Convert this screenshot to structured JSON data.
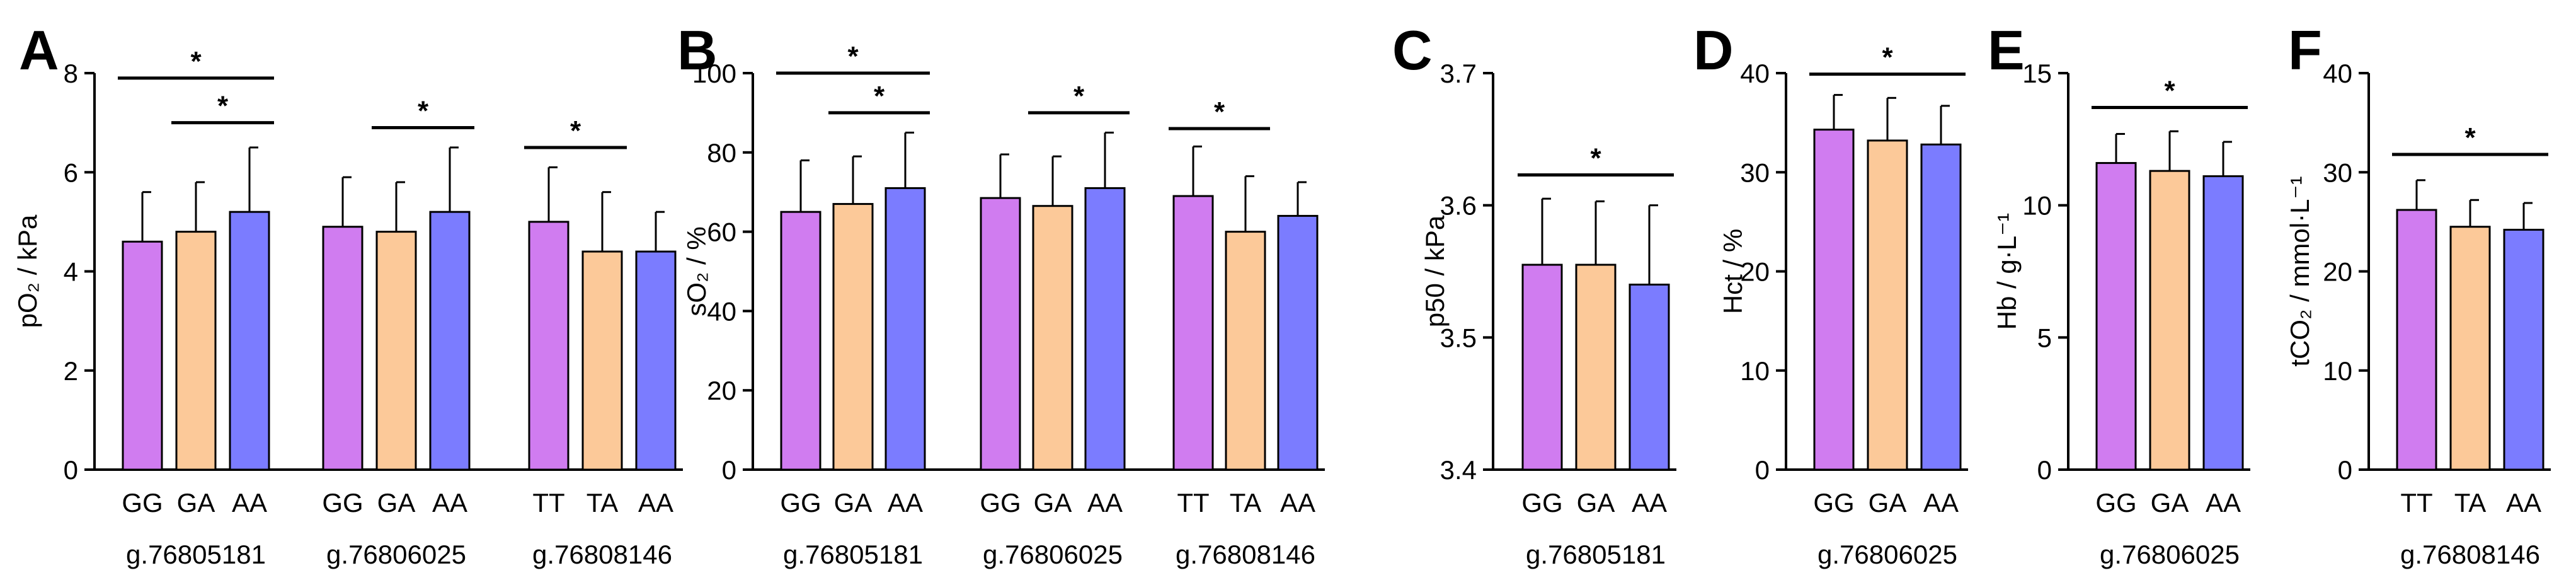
{
  "colors": {
    "GG": "#d07cf0",
    "GA": "#fcc999",
    "AA": "#7b7cff",
    "TT": "#d07cf0",
    "TA": "#fcc999"
  },
  "chart_data": [
    {
      "id": "A",
      "type": "bar",
      "panel_label": "A",
      "ylabel": "pO₂ / kPa",
      "ylim": [
        0,
        8
      ],
      "yticks": [
        0,
        2,
        4,
        6,
        8
      ],
      "groups": [
        {
          "label": "g.76805181",
          "bars": [
            {
              "category": "GG",
              "mean": 4.6,
              "sd": 1.0
            },
            {
              "category": "GA",
              "mean": 4.8,
              "sd": 1.0
            },
            {
              "category": "AA",
              "mean": 5.2,
              "sd": 1.3
            }
          ]
        },
        {
          "label": "g.76806025",
          "bars": [
            {
              "category": "GG",
              "mean": 4.9,
              "sd": 1.0
            },
            {
              "category": "GA",
              "mean": 4.8,
              "sd": 1.0
            },
            {
              "category": "AA",
              "mean": 5.2,
              "sd": 1.3
            }
          ]
        },
        {
          "label": "g.76808146",
          "bars": [
            {
              "category": "TT",
              "mean": 5.0,
              "sd": 1.1
            },
            {
              "category": "TA",
              "mean": 4.4,
              "sd": 1.2
            },
            {
              "category": "AA",
              "mean": 4.4,
              "sd": 0.8
            }
          ]
        }
      ],
      "significance": [
        {
          "group": 0,
          "from": 0,
          "to": 2,
          "y": 7.9,
          "label": "*"
        },
        {
          "group": 0,
          "from": 1,
          "to": 2,
          "y": 7.0,
          "label": "*"
        },
        {
          "group": 1,
          "from": 1,
          "to": 2,
          "y": 6.9,
          "label": "*"
        },
        {
          "group": 2,
          "from": 0,
          "to": 1,
          "y": 6.5,
          "label": "*"
        }
      ]
    },
    {
      "id": "B",
      "type": "bar",
      "panel_label": "B",
      "ylabel": "sO₂ / %",
      "ylim": [
        0,
        100
      ],
      "yticks": [
        0,
        20,
        40,
        60,
        80,
        100
      ],
      "groups": [
        {
          "label": "g.76805181",
          "bars": [
            {
              "category": "GG",
              "mean": 65,
              "sd": 13
            },
            {
              "category": "GA",
              "mean": 67,
              "sd": 12
            },
            {
              "category": "AA",
              "mean": 71,
              "sd": 14
            }
          ]
        },
        {
          "label": "g.76806025",
          "bars": [
            {
              "category": "GG",
              "mean": 68.5,
              "sd": 11
            },
            {
              "category": "GA",
              "mean": 66.5,
              "sd": 12.5
            },
            {
              "category": "AA",
              "mean": 71,
              "sd": 14
            }
          ]
        },
        {
          "label": "g.76808146",
          "bars": [
            {
              "category": "TT",
              "mean": 69,
              "sd": 12.5
            },
            {
              "category": "TA",
              "mean": 60,
              "sd": 14
            },
            {
              "category": "AA",
              "mean": 64,
              "sd": 8.5
            }
          ]
        }
      ],
      "significance": [
        {
          "group": 0,
          "from": 0,
          "to": 2,
          "y": 100,
          "label": "*"
        },
        {
          "group": 0,
          "from": 1,
          "to": 2,
          "y": 90,
          "label": "*"
        },
        {
          "group": 1,
          "from": 1,
          "to": 2,
          "y": 90,
          "label": "*"
        },
        {
          "group": 2,
          "from": 0,
          "to": 1,
          "y": 86,
          "label": "*"
        }
      ]
    },
    {
      "id": "C",
      "type": "bar",
      "panel_label": "C",
      "ylabel": "p50 / kPa",
      "ylim": [
        3.4,
        3.7
      ],
      "yticks": [
        3.4,
        3.5,
        3.6,
        3.7
      ],
      "groups": [
        {
          "label": "g.76805181",
          "bars": [
            {
              "category": "GG",
              "mean": 3.555,
              "sd": 0.05
            },
            {
              "category": "GA",
              "mean": 3.555,
              "sd": 0.048
            },
            {
              "category": "AA",
              "mean": 3.54,
              "sd": 0.06
            }
          ]
        }
      ],
      "significance": [
        {
          "group": 0,
          "from": 0,
          "to": 2,
          "y": 3.623,
          "label": "*"
        }
      ]
    },
    {
      "id": "D",
      "type": "bar",
      "panel_label": "D",
      "ylabel": "Hct / %",
      "ylim": [
        0,
        40
      ],
      "yticks": [
        0,
        10,
        20,
        30,
        40
      ],
      "groups": [
        {
          "label": "g.76806025",
          "bars": [
            {
              "category": "GG",
              "mean": 34.3,
              "sd": 3.5
            },
            {
              "category": "GA",
              "mean": 33.2,
              "sd": 4.3
            },
            {
              "category": "AA",
              "mean": 32.8,
              "sd": 3.9
            }
          ]
        }
      ],
      "significance": [
        {
          "group": 0,
          "from": 0,
          "to": 2,
          "y": 39.9,
          "label": "*"
        }
      ]
    },
    {
      "id": "E",
      "type": "bar",
      "panel_label": "E",
      "ylabel": "Hb / g·L⁻¹",
      "ylim": [
        0,
        15
      ],
      "yticks": [
        0,
        5,
        10,
        15
      ],
      "groups": [
        {
          "label": "g.76806025",
          "bars": [
            {
              "category": "GG",
              "mean": 11.6,
              "sd": 1.1
            },
            {
              "category": "GA",
              "mean": 11.3,
              "sd": 1.5
            },
            {
              "category": "AA",
              "mean": 11.1,
              "sd": 1.3
            }
          ]
        }
      ],
      "significance": [
        {
          "group": 0,
          "from": 0,
          "to": 2,
          "y": 13.7,
          "label": "*"
        }
      ]
    },
    {
      "id": "F",
      "type": "bar",
      "panel_label": "F",
      "ylabel": "tCO₂ / mmol·L⁻¹",
      "ylim": [
        0,
        40
      ],
      "yticks": [
        0,
        10,
        20,
        30,
        40
      ],
      "groups": [
        {
          "label": "g.76808146",
          "bars": [
            {
              "category": "TT",
              "mean": 26.2,
              "sd": 3.0
            },
            {
              "category": "TA",
              "mean": 24.5,
              "sd": 2.7
            },
            {
              "category": "AA",
              "mean": 24.2,
              "sd": 2.7
            }
          ]
        }
      ],
      "significance": [
        {
          "group": 0,
          "from": 0,
          "to": 2,
          "y": 31.8,
          "label": "*"
        }
      ]
    }
  ]
}
